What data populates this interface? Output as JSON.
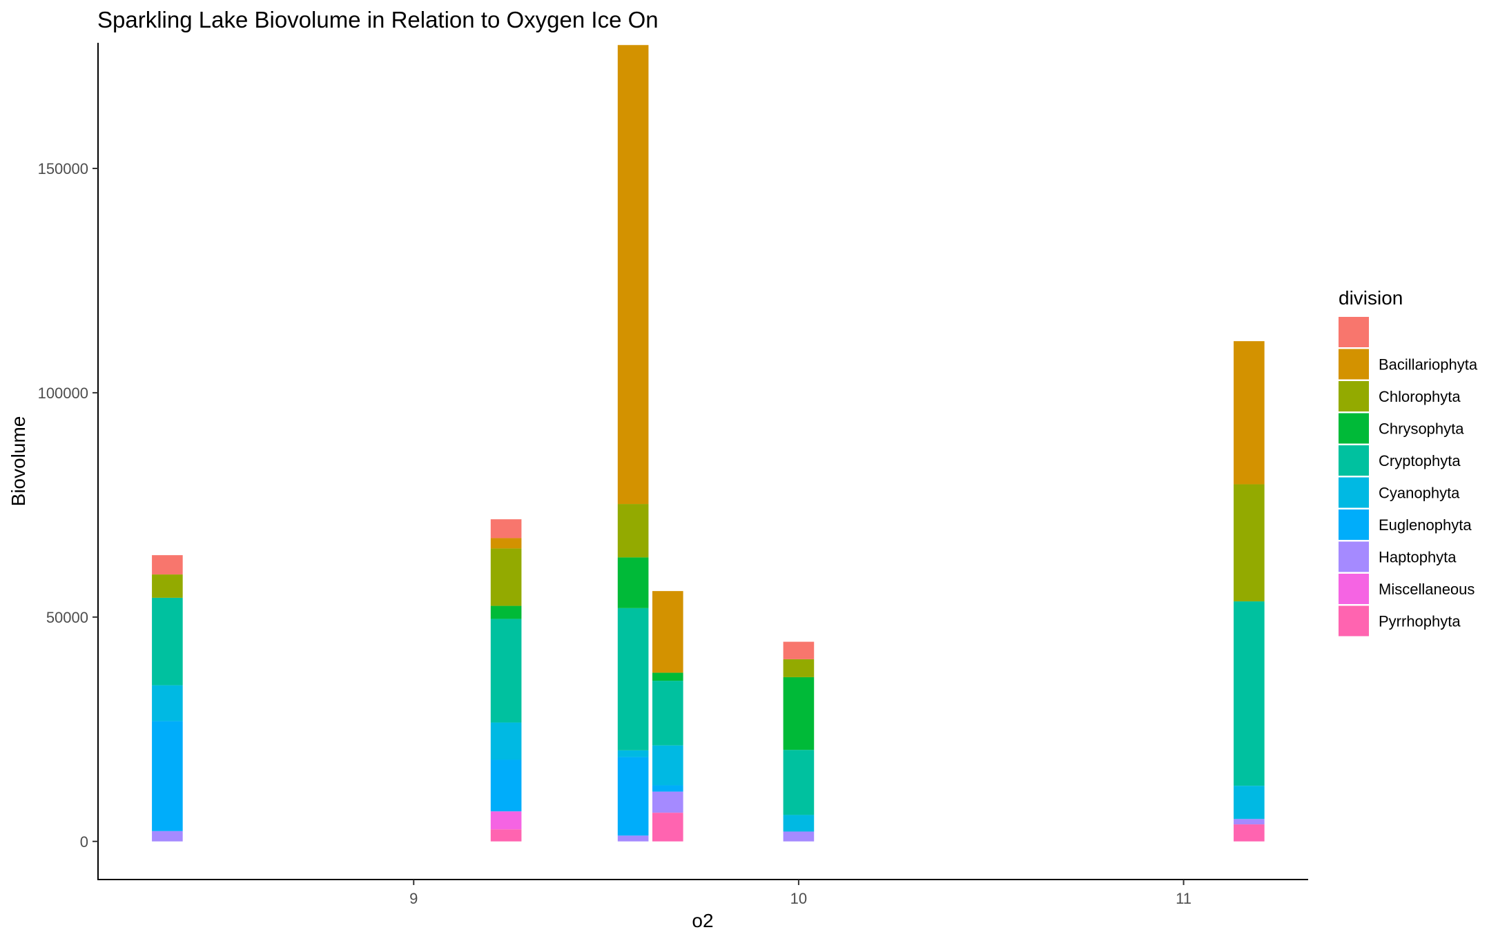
{
  "chart_data": {
    "type": "bar",
    "stacked": true,
    "title": "Sparkling Lake Biovolume in Relation to Oxygen Ice On",
    "xlabel": "o2",
    "ylabel": "Biovolume",
    "xlim": [
      8.18,
      11.32
    ],
    "ylim": [
      -8500,
      178000
    ],
    "x_ticks": [
      9,
      10,
      11
    ],
    "y_ticks": [
      0,
      50000,
      100000,
      150000
    ],
    "bar_width": 0.08,
    "grid": false,
    "legend": {
      "title": "division",
      "placement": "right",
      "entries": [
        {
          "name": "",
          "color": "#F8766D"
        },
        {
          "name": "Bacillariophyta",
          "color": "#D39200"
        },
        {
          "name": "Chlorophyta",
          "color": "#93AA00"
        },
        {
          "name": "Chrysophyta",
          "color": "#00BA38"
        },
        {
          "name": "Cryptophyta",
          "color": "#00C19F"
        },
        {
          "name": "Cyanophyta",
          "color": "#00B9E3"
        },
        {
          "name": "Euglenophyta",
          "color": "#00ADFA"
        },
        {
          "name": "Haptophyta",
          "color": "#A58AFF"
        },
        {
          "name": "Miscellaneous",
          "color": "#F564E3"
        },
        {
          "name": "Pyrrhophyta",
          "color": "#FF64B0"
        }
      ]
    },
    "stack_order_bottom_to_top": [
      "Pyrrhophyta",
      "Miscellaneous",
      "Haptophyta",
      "Euglenophyta",
      "Cyanophyta",
      "Cryptophyta",
      "Chrysophyta",
      "Chlorophyta",
      "Bacillariophyta",
      ""
    ],
    "bars": [
      {
        "x": 8.36,
        "segments": {
          "Haptophyta": 2300,
          "Euglenophyta": 24500,
          "Cyanophyta": 8000,
          "Cryptophyta": 19500,
          "Chlorophyta": 5200,
          "": 4300
        }
      },
      {
        "x": 9.24,
        "segments": {
          "Pyrrhophyta": 2700,
          "Miscellaneous": 4000,
          "Euglenophyta": 11500,
          "Cyanophyta": 8300,
          "Cryptophyta": 23100,
          "Chrysophyta": 2900,
          "Chlorophyta": 12800,
          "Bacillariophyta": 2300,
          "": 4200
        }
      },
      {
        "x": 9.57,
        "segments": {
          "Haptophyta": 1300,
          "Euglenophyta": 17500,
          "Cyanophyta": 1500,
          "Cryptophyta": 31700,
          "Chrysophyta": 11300,
          "Chlorophyta": 11900,
          "Bacillariophyta": 102300
        }
      },
      {
        "x": 9.66,
        "segments": {
          "Pyrrhophyta": 6400,
          "Haptophyta": 4700,
          "Euglenophyta": 1400,
          "Cyanophyta": 8900,
          "Cryptophyta": 14400,
          "Chrysophyta": 1800,
          "Bacillariophyta": 18200
        }
      },
      {
        "x": 10.0,
        "segments": {
          "Haptophyta": 2200,
          "Cyanophyta": 3700,
          "Cryptophyta": 14500,
          "Chrysophyta": 16200,
          "Chlorophyta": 4000,
          "": 3900
        }
      },
      {
        "x": 11.17,
        "segments": {
          "Pyrrhophyta": 3800,
          "Haptophyta": 1200,
          "Cyanophyta": 7400,
          "Cryptophyta": 41100,
          "Chlorophyta": 26100,
          "Bacillariophyta": 31900
        }
      }
    ]
  }
}
